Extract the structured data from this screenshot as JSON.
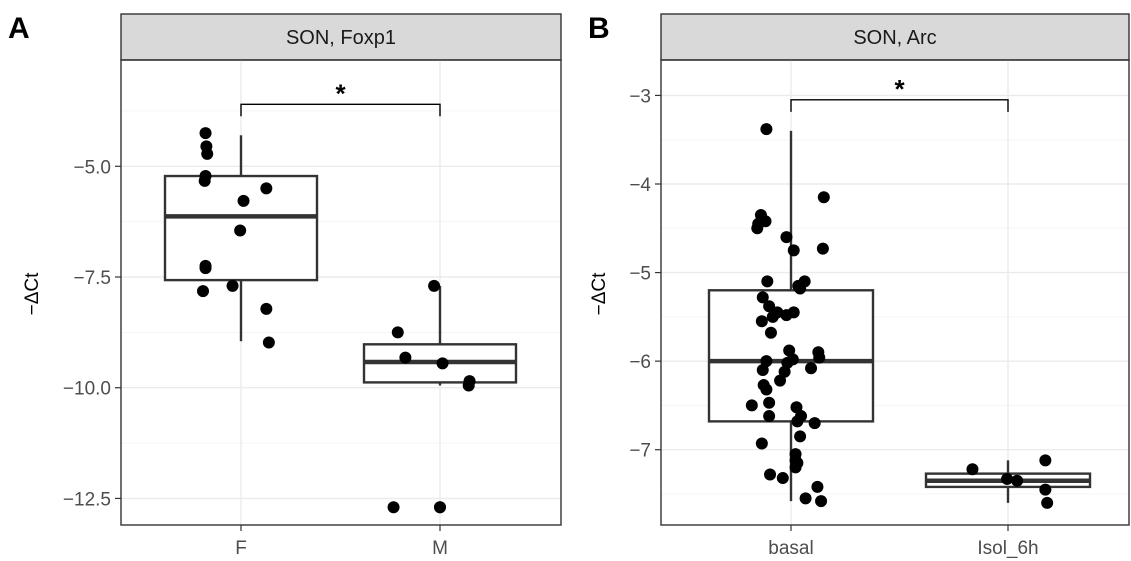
{
  "chart_data": [
    {
      "type": "boxplot",
      "panel_tag": "A",
      "strip_title": "SON, Foxp1",
      "ylabel": "−ΔCt",
      "ylim": [
        -13.1,
        -2.6
      ],
      "yticks": [
        -12.5,
        -10.0,
        -7.5,
        -5.0
      ],
      "ytick_labels": [
        "−12.5",
        "−10.0",
        "−7.5",
        "−5.0"
      ],
      "categories": [
        "F",
        "M"
      ],
      "boxes": [
        {
          "category": "F",
          "lower_whisker": -8.95,
          "q1": -7.57,
          "median": -6.13,
          "q3": -5.22,
          "upper_whisker": -4.3
        },
        {
          "category": "M",
          "lower_whisker": -9.95,
          "q1": -9.88,
          "median": -9.42,
          "q3": -9.02,
          "upper_whisker": -7.7,
          "outliers": [
            -12.7
          ]
        }
      ],
      "points": [
        {
          "category": "F",
          "offset": -0.42,
          "y": -4.25
        },
        {
          "category": "F",
          "offset": -0.41,
          "y": -4.55
        },
        {
          "category": "F",
          "offset": -0.4,
          "y": -4.72
        },
        {
          "category": "F",
          "offset": -0.42,
          "y": -5.22
        },
        {
          "category": "F",
          "offset": -0.43,
          "y": -5.33
        },
        {
          "category": "F",
          "offset": 0.03,
          "y": -5.78
        },
        {
          "category": "F",
          "offset": 0.3,
          "y": -5.5
        },
        {
          "category": "F",
          "offset": -0.01,
          "y": -6.45
        },
        {
          "category": "F",
          "offset": -0.42,
          "y": -7.3
        },
        {
          "category": "F",
          "offset": -0.42,
          "y": -7.25
        },
        {
          "category": "F",
          "offset": -0.1,
          "y": -7.7
        },
        {
          "category": "F",
          "offset": -0.45,
          "y": -7.82
        },
        {
          "category": "F",
          "offset": 0.3,
          "y": -8.22
        },
        {
          "category": "F",
          "offset": 0.33,
          "y": -8.98
        },
        {
          "category": "M",
          "offset": -0.5,
          "y": -8.75
        },
        {
          "category": "M",
          "offset": -0.41,
          "y": -9.32
        },
        {
          "category": "M",
          "offset": -0.07,
          "y": -7.7
        },
        {
          "category": "M",
          "offset": 0.03,
          "y": -9.45
        },
        {
          "category": "M",
          "offset": 0.34,
          "y": -9.95
        },
        {
          "category": "M",
          "offset": 0.35,
          "y": -9.85
        },
        {
          "category": "M",
          "offset": -0.55,
          "y": -12.7
        },
        {
          "category": "M",
          "offset": 0.0,
          "y": -12.7
        }
      ],
      "significance": {
        "from": "F",
        "to": "M",
        "y": -3.6,
        "label": "*"
      }
    },
    {
      "type": "boxplot",
      "panel_tag": "B",
      "strip_title": "SON, Arc",
      "ylabel": "−ΔCt",
      "ylim": [
        -7.85,
        -2.6
      ],
      "yticks": [
        -7,
        -6,
        -5,
        -4,
        -3
      ],
      "ytick_labels": [
        "−7",
        "−6",
        "−5",
        "−4",
        "−3"
      ],
      "categories": [
        "basal",
        "Isol_6h"
      ],
      "boxes": [
        {
          "category": "basal",
          "lower_whisker": -7.58,
          "q1": -6.68,
          "median": -6.0,
          "q3": -5.2,
          "upper_whisker": -3.4
        },
        {
          "category": "Isol_6h",
          "lower_whisker": -7.6,
          "q1": -7.42,
          "median": -7.35,
          "q3": -7.27,
          "upper_whisker": -7.12
        }
      ],
      "points": [
        {
          "category": "basal",
          "offset": -0.27,
          "y": -3.38
        },
        {
          "category": "basal",
          "offset": 0.36,
          "y": -4.15
        },
        {
          "category": "basal",
          "offset": -0.33,
          "y": -4.35
        },
        {
          "category": "basal",
          "offset": -0.36,
          "y": -4.45
        },
        {
          "category": "basal",
          "offset": -0.37,
          "y": -4.5
        },
        {
          "category": "basal",
          "offset": -0.28,
          "y": -4.42
        },
        {
          "category": "basal",
          "offset": -0.05,
          "y": -4.6
        },
        {
          "category": "basal",
          "offset": 0.03,
          "y": -4.75
        },
        {
          "category": "basal",
          "offset": 0.35,
          "y": -4.73
        },
        {
          "category": "basal",
          "offset": -0.26,
          "y": -5.1
        },
        {
          "category": "basal",
          "offset": 0.15,
          "y": -5.1
        },
        {
          "category": "basal",
          "offset": 0.08,
          "y": -5.15
        },
        {
          "category": "basal",
          "offset": 0.1,
          "y": -5.18
        },
        {
          "category": "basal",
          "offset": -0.31,
          "y": -5.28
        },
        {
          "category": "basal",
          "offset": -0.24,
          "y": -5.38
        },
        {
          "category": "basal",
          "offset": -0.2,
          "y": -5.5
        },
        {
          "category": "basal",
          "offset": -0.15,
          "y": -5.45
        },
        {
          "category": "basal",
          "offset": -0.05,
          "y": -5.48
        },
        {
          "category": "basal",
          "offset": 0.03,
          "y": -5.45
        },
        {
          "category": "basal",
          "offset": -0.32,
          "y": -5.55
        },
        {
          "category": "basal",
          "offset": -0.22,
          "y": -5.68
        },
        {
          "category": "basal",
          "offset": -0.02,
          "y": -5.88
        },
        {
          "category": "basal",
          "offset": 0.02,
          "y": -5.98
        },
        {
          "category": "basal",
          "offset": -0.27,
          "y": -6.0
        },
        {
          "category": "basal",
          "offset": -0.04,
          "y": -6.02
        },
        {
          "category": "basal",
          "offset": 0.3,
          "y": -5.9
        },
        {
          "category": "basal",
          "offset": 0.31,
          "y": -5.96
        },
        {
          "category": "basal",
          "offset": -0.31,
          "y": -6.1
        },
        {
          "category": "basal",
          "offset": -0.12,
          "y": -6.22
        },
        {
          "category": "basal",
          "offset": -0.07,
          "y": -6.12
        },
        {
          "category": "basal",
          "offset": 0.22,
          "y": -6.08
        },
        {
          "category": "basal",
          "offset": -0.3,
          "y": -6.27
        },
        {
          "category": "basal",
          "offset": -0.27,
          "y": -6.32
        },
        {
          "category": "basal",
          "offset": -0.24,
          "y": -6.47
        },
        {
          "category": "basal",
          "offset": -0.43,
          "y": -6.5
        },
        {
          "category": "basal",
          "offset": -0.24,
          "y": -6.62
        },
        {
          "category": "basal",
          "offset": 0.06,
          "y": -6.52
        },
        {
          "category": "basal",
          "offset": 0.11,
          "y": -6.62
        },
        {
          "category": "basal",
          "offset": 0.26,
          "y": -6.7
        },
        {
          "category": "basal",
          "offset": 0.07,
          "y": -6.68
        },
        {
          "category": "basal",
          "offset": 0.1,
          "y": -6.85
        },
        {
          "category": "basal",
          "offset": -0.32,
          "y": -6.93
        },
        {
          "category": "basal",
          "offset": 0.05,
          "y": -7.05
        },
        {
          "category": "basal",
          "offset": 0.05,
          "y": -7.12
        },
        {
          "category": "basal",
          "offset": 0.05,
          "y": -7.2
        },
        {
          "category": "basal",
          "offset": 0.07,
          "y": -7.15
        },
        {
          "category": "basal",
          "offset": -0.23,
          "y": -7.28
        },
        {
          "category": "basal",
          "offset": -0.09,
          "y": -7.32
        },
        {
          "category": "basal",
          "offset": 0.29,
          "y": -7.42
        },
        {
          "category": "basal",
          "offset": 0.16,
          "y": -7.55
        },
        {
          "category": "basal",
          "offset": 0.33,
          "y": -7.58
        },
        {
          "category": "Isol_6h",
          "offset": -0.39,
          "y": -7.22
        },
        {
          "category": "Isol_6h",
          "offset": -0.01,
          "y": -7.33
        },
        {
          "category": "Isol_6h",
          "offset": 0.1,
          "y": -7.35
        },
        {
          "category": "Isol_6h",
          "offset": 0.41,
          "y": -7.12
        },
        {
          "category": "Isol_6h",
          "offset": 0.41,
          "y": -7.45
        },
        {
          "category": "Isol_6h",
          "offset": 0.43,
          "y": -7.6
        }
      ],
      "significance": {
        "from": "basal",
        "to": "Isol_6h",
        "y": -3.05,
        "label": "*"
      }
    }
  ],
  "colors": {
    "strip_fill": "#d9d9d9",
    "panel_border": "#333333",
    "grid_major": "#ebebeb",
    "grid_minor": "#f5f5f5",
    "box_line": "#333333",
    "point": "#000000",
    "outlier": "#333333"
  }
}
